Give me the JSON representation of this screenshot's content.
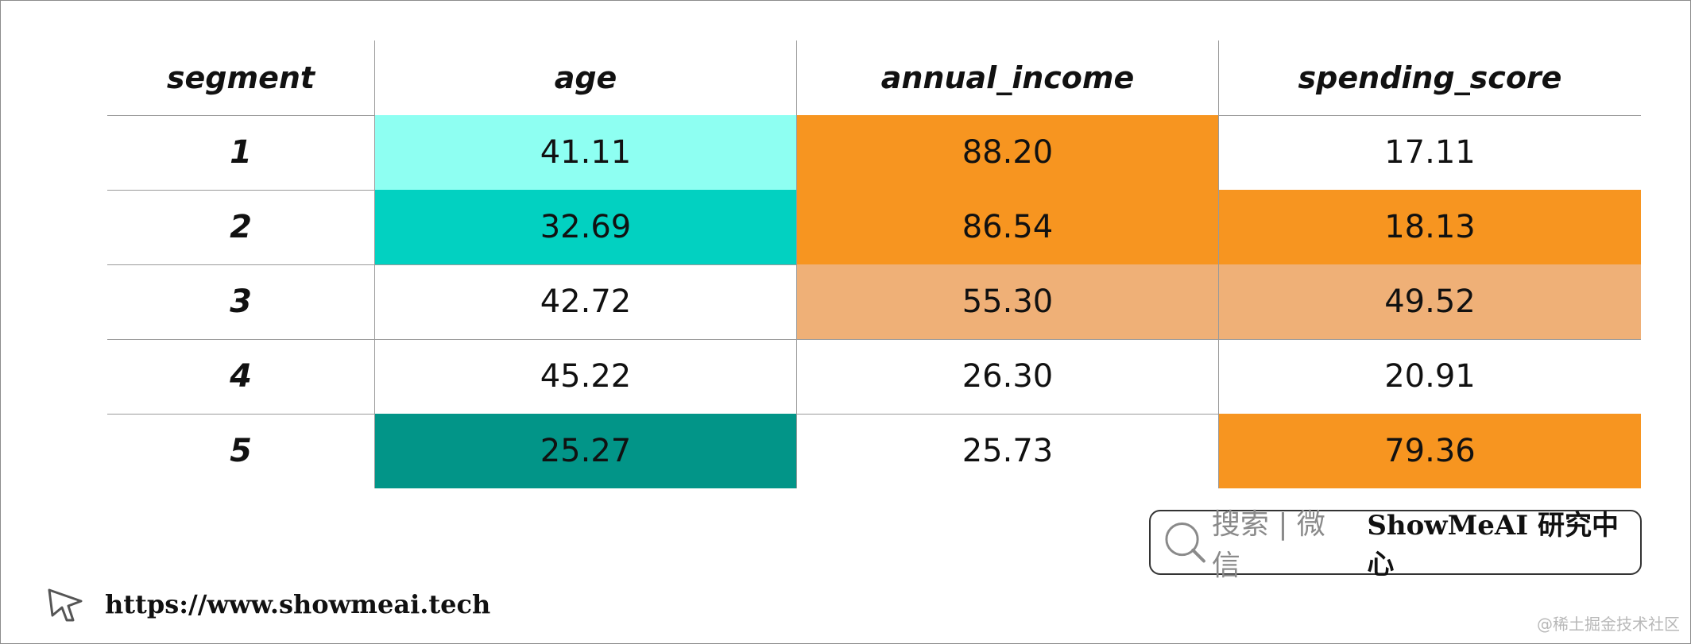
{
  "table": {
    "columns": [
      "segment",
      "age",
      "annual_income",
      "spending_score"
    ],
    "rows": [
      {
        "segment": "1",
        "age": "41.11",
        "annual_income": "88.20",
        "spending_score": "17.11"
      },
      {
        "segment": "2",
        "age": "32.69",
        "annual_income": "86.54",
        "spending_score": "18.13"
      },
      {
        "segment": "3",
        "age": "42.72",
        "annual_income": "55.30",
        "spending_score": "49.52"
      },
      {
        "segment": "4",
        "age": "45.22",
        "annual_income": "26.30",
        "spending_score": "20.91"
      },
      {
        "segment": "5",
        "age": "25.27",
        "annual_income": "25.73",
        "spending_score": "79.36"
      }
    ],
    "highlight_colors": {
      "age": [
        "#8efff2",
        "#02d1c1",
        null,
        null,
        "#029588"
      ],
      "annual_income": [
        "#f79520",
        "#f79520",
        "#efb077",
        null,
        null
      ],
      "spending_score": [
        null,
        "#f79520",
        "#efb077",
        null,
        "#f79520"
      ]
    }
  },
  "footer": {
    "url": "https://www.showmeai.tech",
    "url_icon": "cursor-arrow-icon",
    "badge": {
      "icon": "search-icon",
      "label": "搜索 | 微信",
      "brand": "ShowMeAI 研究中心"
    },
    "watermark": "@稀土掘金技术社区"
  }
}
